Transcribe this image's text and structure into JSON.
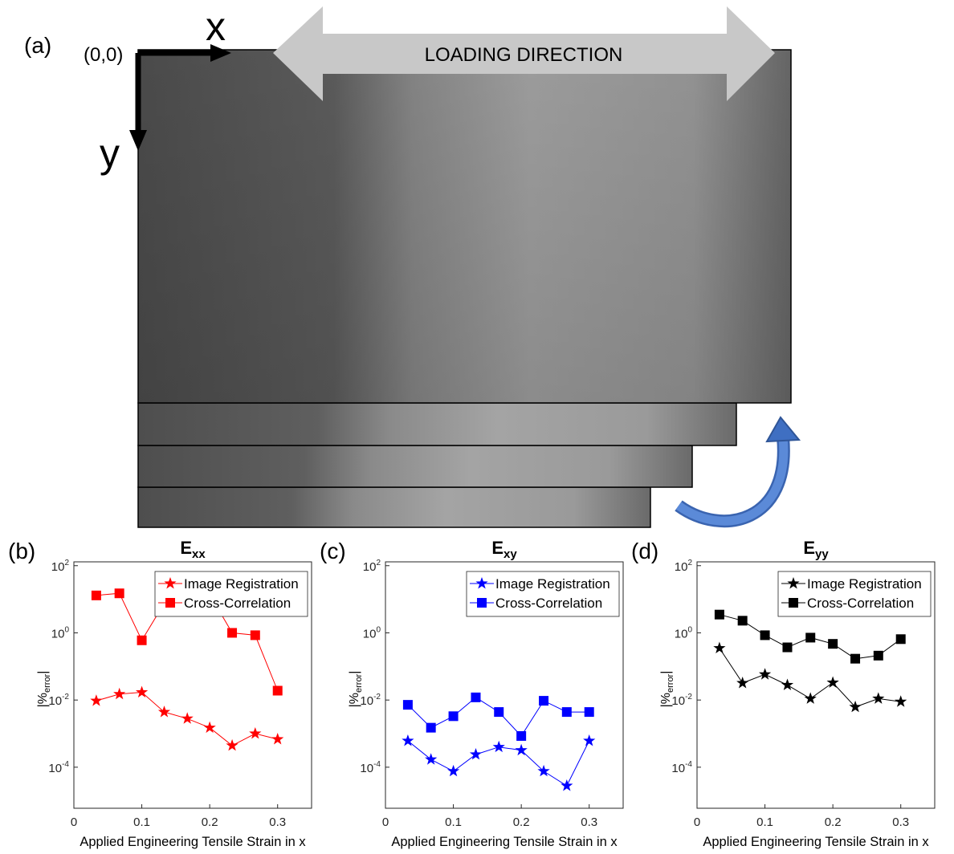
{
  "panel_a": {
    "label": "(a)",
    "origin": "(0,0)",
    "x_axis": "x",
    "y_axis": "y",
    "arrow_text": "LOADING DIRECTION"
  },
  "chart_data": [
    {
      "type": "line",
      "panel_label": "(b)",
      "title": "E",
      "title_sub": "xx",
      "xlabel": "Applied Engineering Tensile Strain in x",
      "ylabel": {
        "text": "|%",
        "sub": "error",
        "end": "|"
      },
      "yscale": "log",
      "legend": "northeast",
      "xlim": [
        0,
        0.35
      ],
      "xticks": [
        0,
        0.1,
        0.2,
        0.3
      ],
      "ylim": [
        6e-06,
        130
      ],
      "yticks": [
        {
          "value": 0.0001,
          "label": "10",
          "sup": "-4"
        },
        {
          "value": 0.01,
          "label": "10",
          "sup": "-2"
        },
        {
          "value": 1,
          "label": "10",
          "sup": "0"
        },
        {
          "value": 100,
          "label": "10",
          "sup": "2"
        }
      ],
      "x": [
        0.033,
        0.067,
        0.1,
        0.133,
        0.167,
        0.2,
        0.233,
        0.267,
        0.3
      ],
      "series": [
        {
          "name": "Image Registration",
          "color": "#ff0000",
          "marker": "star",
          "values": [
            0.0095,
            0.015,
            0.017,
            0.0044,
            0.0028,
            0.0015,
            0.00044,
            0.001,
            0.00068
          ]
        },
        {
          "name": "Cross-Correlation",
          "color": "#ff0000",
          "marker": "square",
          "values": [
            13,
            15,
            0.6,
            7.6,
            16,
            14,
            1.0,
            0.85,
            0.019
          ]
        }
      ]
    },
    {
      "type": "line",
      "panel_label": "(c)",
      "title": "E",
      "title_sub": "xy",
      "xlabel": "Applied Engineering Tensile Strain in x",
      "ylabel": {
        "text": "|%",
        "sub": "error",
        "end": "|"
      },
      "yscale": "log",
      "legend": "northeast",
      "xlim": [
        0,
        0.35
      ],
      "xticks": [
        0,
        0.1,
        0.2,
        0.3
      ],
      "ylim": [
        6e-06,
        130
      ],
      "yticks": [
        {
          "value": 0.0001,
          "label": "10",
          "sup": "-4"
        },
        {
          "value": 0.01,
          "label": "10",
          "sup": "-2"
        },
        {
          "value": 1,
          "label": "10",
          "sup": "0"
        },
        {
          "value": 100,
          "label": "10",
          "sup": "2"
        }
      ],
      "x": [
        0.033,
        0.067,
        0.1,
        0.133,
        0.167,
        0.2,
        0.233,
        0.267,
        0.3
      ],
      "series": [
        {
          "name": "Image Registration",
          "color": "#0000ff",
          "marker": "star",
          "values": [
            0.00061,
            0.00017,
            7.6e-05,
            0.00024,
            0.0004,
            0.00032,
            7.6e-05,
            2.8e-05,
            0.00061
          ]
        },
        {
          "name": "Cross-Correlation",
          "color": "#0000ff",
          "marker": "square",
          "values": [
            0.0072,
            0.0015,
            0.0033,
            0.012,
            0.0044,
            0.00085,
            0.0095,
            0.0044,
            0.0044
          ]
        }
      ]
    },
    {
      "type": "line",
      "panel_label": "(d)",
      "title": "E",
      "title_sub": "yy",
      "xlabel": "Applied Engineering Tensile Strain in x",
      "ylabel": {
        "text": "|%",
        "sub": "error",
        "end": "|"
      },
      "yscale": "log",
      "legend": "northeast",
      "xlim": [
        0,
        0.35
      ],
      "xticks": [
        0,
        0.1,
        0.2,
        0.3
      ],
      "ylim": [
        6e-06,
        130
      ],
      "yticks": [
        {
          "value": 0.0001,
          "label": "10",
          "sup": "-4"
        },
        {
          "value": 0.01,
          "label": "10",
          "sup": "-2"
        },
        {
          "value": 1,
          "label": "10",
          "sup": "0"
        },
        {
          "value": 100,
          "label": "10",
          "sup": "2"
        }
      ],
      "x": [
        0.033,
        0.067,
        0.1,
        0.133,
        0.167,
        0.2,
        0.233,
        0.267,
        0.3
      ],
      "series": [
        {
          "name": "Image Registration",
          "color": "#000000",
          "marker": "star",
          "values": [
            0.35,
            0.032,
            0.058,
            0.028,
            0.011,
            0.033,
            0.0062,
            0.011,
            0.0089
          ]
        },
        {
          "name": "Cross-Correlation",
          "color": "#000000",
          "marker": "square",
          "values": [
            3.5,
            2.3,
            0.85,
            0.37,
            0.72,
            0.47,
            0.17,
            0.21,
            0.65
          ]
        }
      ]
    }
  ]
}
